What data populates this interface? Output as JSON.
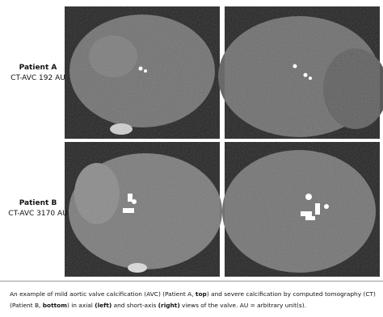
{
  "figure": {
    "panels": [
      {
        "patient": "Patient A",
        "score": "CT-AVC 192 AU"
      },
      {
        "patient": "Patient B",
        "score": "CT-AVC 3170 AU"
      }
    ],
    "caption": [
      {
        "text": "An example of mild aortic valve calcification (AVC) (Patient A, ",
        "bold": false
      },
      {
        "text": "top",
        "bold": true
      },
      {
        "text": ") and severe calcification by computed tomography (CT) (Patient B, ",
        "bold": false
      },
      {
        "text": "bottom",
        "bold": true
      },
      {
        "text": ") in axial ",
        "bold": false
      },
      {
        "text": "(left)",
        "bold": true
      },
      {
        "text": " and short-axis ",
        "bold": false
      },
      {
        "text": "(right)",
        "bold": true
      },
      {
        "text": " views of the valve. AU = arbitrary unit(s).",
        "bold": false
      }
    ]
  }
}
